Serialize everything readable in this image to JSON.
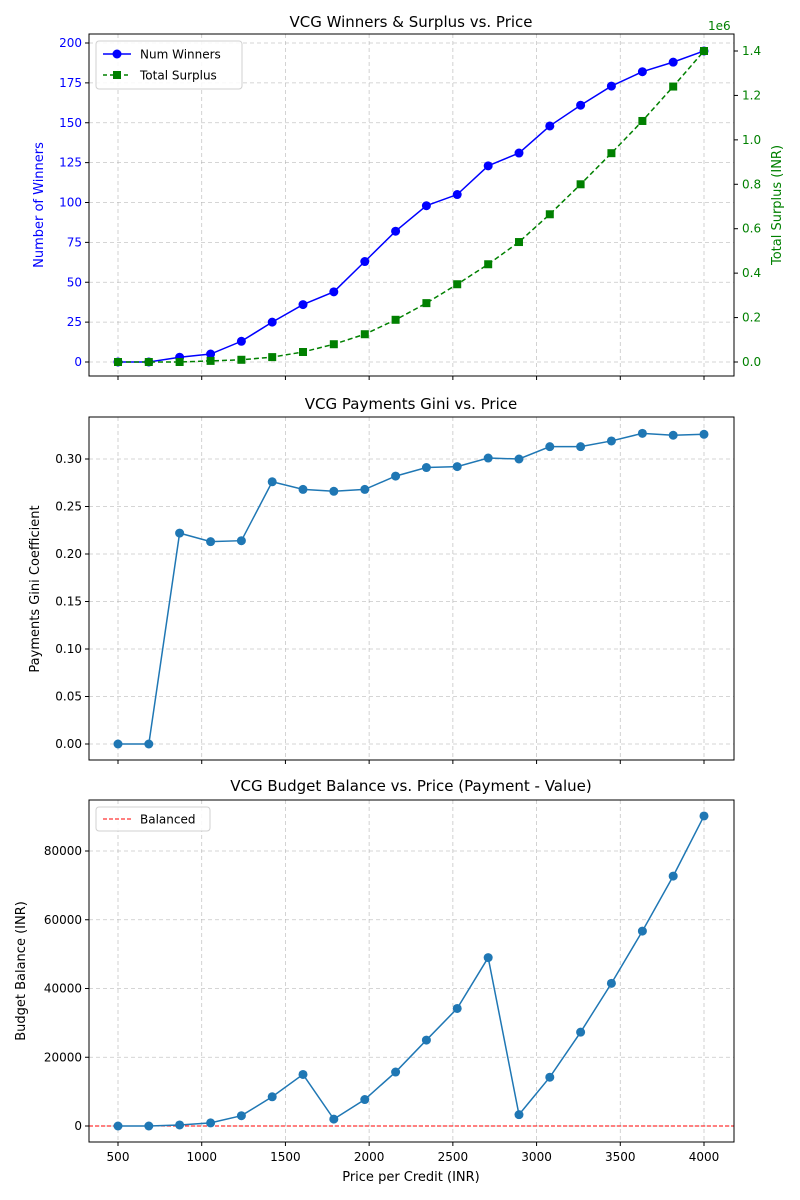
{
  "colors": {
    "winners": "#0000ff",
    "surplus": "#008000",
    "series": "#1f77b4",
    "balanced": "#ff0000",
    "grid": "#b0b0b0"
  },
  "chart_data": [
    {
      "type": "line",
      "title": "VCG Winners & Surplus vs. Price",
      "xlabel": "",
      "ylabel": "Number of Winners",
      "y2label": "Total Surplus (INR)",
      "y2_offset_text": "1e6",
      "x": [
        500,
        684,
        868,
        1053,
        1237,
        1421,
        1605,
        1789,
        1974,
        2158,
        2342,
        2526,
        2711,
        2895,
        3079,
        3263,
        3447,
        3632,
        3816,
        4000
      ],
      "xlim": [
        500,
        4000
      ],
      "ylim": [
        0,
        200
      ],
      "y2lim": [
        0,
        1.4
      ],
      "xticks": [
        500,
        1000,
        1500,
        2000,
        2500,
        3000,
        3500,
        4000
      ],
      "yticks": [
        0,
        25,
        50,
        75,
        100,
        125,
        150,
        175,
        200
      ],
      "y2ticks": [
        "0.0",
        "0.2",
        "0.4",
        "0.6",
        "0.8",
        "1.0",
        "1.2",
        "1.4"
      ],
      "grid": true,
      "legend_position": "top-left",
      "series": [
        {
          "name": "Num Winners",
          "axis": "left",
          "marker": "circle",
          "line": "solid",
          "values": [
            0,
            0,
            3,
            5,
            13,
            25,
            36,
            44,
            63,
            82,
            98,
            105,
            123,
            131,
            148,
            161,
            173,
            182,
            188,
            195
          ]
        },
        {
          "name": "Total Surplus",
          "axis": "right",
          "marker": "square",
          "line": "dashed",
          "values": [
            0,
            0,
            0,
            0.005,
            0.01,
            0.022,
            0.045,
            0.08,
            0.125,
            0.19,
            0.265,
            0.35,
            0.44,
            0.54,
            0.665,
            0.8,
            0.94,
            1.085,
            1.24,
            1.4
          ]
        }
      ]
    },
    {
      "type": "line",
      "title": "VCG Payments Gini vs. Price",
      "xlabel": "",
      "ylabel": "Payments Gini Coefficient",
      "x": [
        500,
        684,
        868,
        1053,
        1237,
        1421,
        1605,
        1789,
        1974,
        2158,
        2342,
        2526,
        2711,
        2895,
        3079,
        3263,
        3447,
        3632,
        3816,
        4000
      ],
      "xlim": [
        500,
        4000
      ],
      "ylim": [
        0,
        0.33
      ],
      "yticks": [
        "0.00",
        "0.05",
        "0.10",
        "0.15",
        "0.20",
        "0.25",
        "0.30"
      ],
      "grid": true,
      "series": [
        {
          "values": [
            0.0,
            0.0,
            0.222,
            0.213,
            0.214,
            0.276,
            0.268,
            0.266,
            0.268,
            0.282,
            0.291,
            0.292,
            0.301,
            0.3,
            0.313,
            0.313,
            0.319,
            0.327,
            0.325,
            0.326
          ]
        }
      ]
    },
    {
      "type": "line",
      "title": "VCG Budget Balance vs. Price (Payment - Value)",
      "xlabel": "Price per Credit (INR)",
      "ylabel": "Budget Balance (INR)",
      "x": [
        500,
        684,
        868,
        1053,
        1237,
        1421,
        1605,
        1789,
        1974,
        2158,
        2342,
        2526,
        2711,
        2895,
        3079,
        3263,
        3447,
        3632,
        3816,
        4000
      ],
      "xlim": [
        500,
        4000
      ],
      "ylim": [
        0,
        90000
      ],
      "xticks": [
        500,
        1000,
        1500,
        2000,
        2500,
        3000,
        3500,
        4000
      ],
      "yticks": [
        0,
        20000,
        40000,
        60000,
        80000
      ],
      "grid": true,
      "legend_position": "top-left",
      "reference_line": {
        "name": "Balanced",
        "y": 0,
        "style": "dashed"
      },
      "series": [
        {
          "values": [
            0,
            0,
            300,
            900,
            3000,
            8500,
            15000,
            2000,
            7700,
            15700,
            25000,
            34200,
            49000,
            3300,
            14200,
            27300,
            41500,
            56700,
            72700,
            90200
          ]
        }
      ]
    }
  ]
}
